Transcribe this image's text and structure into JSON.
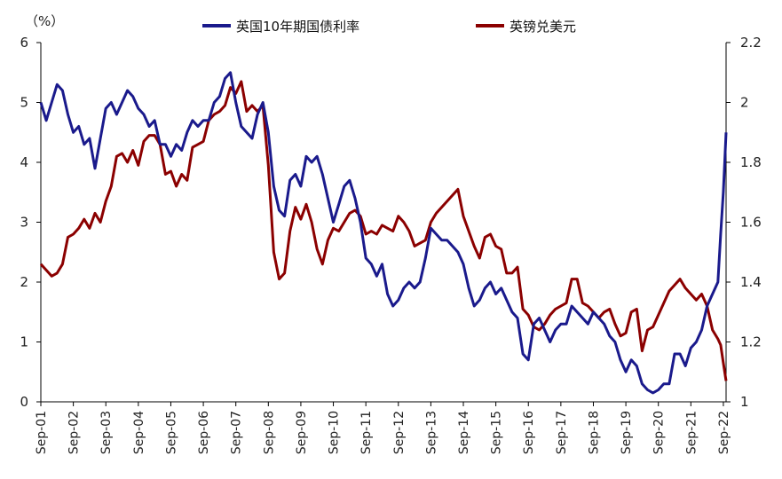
{
  "chart_data": {
    "type": "line",
    "unit_label": "（%）",
    "colors": {
      "gilt_10y": "#1a1a8c",
      "gbp_usd": "#8b0000"
    },
    "left_axis": {
      "range": [
        0,
        6
      ],
      "ticks": [
        "0",
        "1",
        "2",
        "3",
        "4",
        "5",
        "6"
      ]
    },
    "right_axis": {
      "range": [
        1.0,
        2.2
      ],
      "ticks": [
        "1",
        "1.2",
        "1.4",
        "1.6",
        "1.8",
        "2",
        "2.2"
      ]
    },
    "x_range": [
      "2001-09",
      "2022-10"
    ],
    "x_ticks": [
      "Sep-01",
      "Sep-02",
      "Sep-03",
      "Sep-04",
      "Sep-05",
      "Sep-06",
      "Sep-07",
      "Sep-08",
      "Sep-09",
      "Sep-10",
      "Sep-11",
      "Sep-12",
      "Sep-13",
      "Sep-14",
      "Sep-15",
      "Sep-16",
      "Sep-17",
      "Sep-18",
      "Sep-19",
      "Sep-20",
      "Sep-21",
      "Sep-22"
    ],
    "legend": {
      "placement": "top"
    },
    "series": [
      {
        "name": "英国10年期国债利率",
        "axis": "left",
        "x": [
          "2001-09",
          "2001-11",
          "2002-01",
          "2002-03",
          "2002-05",
          "2002-07",
          "2002-09",
          "2002-11",
          "2003-01",
          "2003-03",
          "2003-05",
          "2003-07",
          "2003-09",
          "2003-11",
          "2004-01",
          "2004-03",
          "2004-05",
          "2004-07",
          "2004-09",
          "2004-11",
          "2005-01",
          "2005-03",
          "2005-05",
          "2005-07",
          "2005-09",
          "2005-11",
          "2006-01",
          "2006-03",
          "2006-05",
          "2006-07",
          "2006-09",
          "2006-11",
          "2007-01",
          "2007-03",
          "2007-05",
          "2007-07",
          "2007-09",
          "2007-11",
          "2008-01",
          "2008-03",
          "2008-05",
          "2008-07",
          "2008-09",
          "2008-11",
          "2009-01",
          "2009-03",
          "2009-05",
          "2009-07",
          "2009-09",
          "2009-11",
          "2010-01",
          "2010-03",
          "2010-05",
          "2010-07",
          "2010-09",
          "2010-11",
          "2011-01",
          "2011-03",
          "2011-05",
          "2011-07",
          "2011-09",
          "2011-11",
          "2012-01",
          "2012-03",
          "2012-05",
          "2012-07",
          "2012-09",
          "2012-11",
          "2013-01",
          "2013-03",
          "2013-05",
          "2013-07",
          "2013-09",
          "2013-11",
          "2014-01",
          "2014-03",
          "2014-05",
          "2014-07",
          "2014-09",
          "2014-11",
          "2015-01",
          "2015-03",
          "2015-05",
          "2015-07",
          "2015-09",
          "2015-11",
          "2016-01",
          "2016-03",
          "2016-05",
          "2016-07",
          "2016-09",
          "2016-11",
          "2017-01",
          "2017-03",
          "2017-05",
          "2017-07",
          "2017-09",
          "2017-11",
          "2018-01",
          "2018-03",
          "2018-05",
          "2018-07",
          "2018-09",
          "2018-11",
          "2019-01",
          "2019-03",
          "2019-05",
          "2019-07",
          "2019-09",
          "2019-11",
          "2020-01",
          "2020-03",
          "2020-05",
          "2020-07",
          "2020-09",
          "2020-11",
          "2021-01",
          "2021-03",
          "2021-05",
          "2021-07",
          "2021-09",
          "2021-11",
          "2022-01",
          "2022-03",
          "2022-05",
          "2022-07",
          "2022-08",
          "2022-09",
          "2022-10"
        ],
        "values": [
          5.0,
          4.7,
          5.0,
          5.3,
          5.2,
          4.8,
          4.5,
          4.6,
          4.3,
          4.4,
          3.9,
          4.4,
          4.9,
          5.0,
          4.8,
          5.0,
          5.2,
          5.1,
          4.9,
          4.8,
          4.6,
          4.7,
          4.3,
          4.3,
          4.1,
          4.3,
          4.2,
          4.5,
          4.7,
          4.6,
          4.7,
          4.7,
          5.0,
          5.1,
          5.4,
          5.5,
          5.0,
          4.6,
          4.5,
          4.4,
          4.8,
          5.0,
          4.5,
          3.6,
          3.2,
          3.1,
          3.7,
          3.8,
          3.6,
          4.1,
          4.0,
          4.1,
          3.8,
          3.4,
          3.0,
          3.3,
          3.6,
          3.7,
          3.4,
          3.0,
          2.4,
          2.3,
          2.1,
          2.3,
          1.8,
          1.6,
          1.7,
          1.9,
          2.0,
          1.9,
          2.0,
          2.4,
          2.9,
          2.8,
          2.7,
          2.7,
          2.6,
          2.5,
          2.3,
          1.9,
          1.6,
          1.7,
          1.9,
          2.0,
          1.8,
          1.9,
          1.7,
          1.5,
          1.4,
          0.8,
          0.7,
          1.3,
          1.4,
          1.2,
          1.0,
          1.2,
          1.3,
          1.3,
          1.6,
          1.5,
          1.4,
          1.3,
          1.5,
          1.4,
          1.3,
          1.1,
          1.0,
          0.7,
          0.5,
          0.7,
          0.6,
          0.3,
          0.2,
          0.15,
          0.2,
          0.3,
          0.3,
          0.8,
          0.8,
          0.6,
          0.9,
          1.0,
          1.2,
          1.6,
          1.8,
          2.0,
          2.8,
          3.5,
          4.5
        ]
      },
      {
        "name": "英镑兑美元",
        "axis": "right",
        "x": [
          "2001-09",
          "2001-11",
          "2002-01",
          "2002-03",
          "2002-05",
          "2002-07",
          "2002-09",
          "2002-11",
          "2003-01",
          "2003-03",
          "2003-05",
          "2003-07",
          "2003-09",
          "2003-11",
          "2004-01",
          "2004-03",
          "2004-05",
          "2004-07",
          "2004-09",
          "2004-11",
          "2005-01",
          "2005-03",
          "2005-05",
          "2005-07",
          "2005-09",
          "2005-11",
          "2006-01",
          "2006-03",
          "2006-05",
          "2006-07",
          "2006-09",
          "2006-11",
          "2007-01",
          "2007-03",
          "2007-05",
          "2007-07",
          "2007-09",
          "2007-11",
          "2008-01",
          "2008-03",
          "2008-05",
          "2008-07",
          "2008-09",
          "2008-11",
          "2009-01",
          "2009-03",
          "2009-05",
          "2009-07",
          "2009-09",
          "2009-11",
          "2010-01",
          "2010-03",
          "2010-05",
          "2010-07",
          "2010-09",
          "2010-11",
          "2011-01",
          "2011-03",
          "2011-05",
          "2011-07",
          "2011-09",
          "2011-11",
          "2012-01",
          "2012-03",
          "2012-05",
          "2012-07",
          "2012-09",
          "2012-11",
          "2013-01",
          "2013-03",
          "2013-05",
          "2013-07",
          "2013-09",
          "2013-11",
          "2014-01",
          "2014-03",
          "2014-05",
          "2014-07",
          "2014-09",
          "2014-11",
          "2015-01",
          "2015-03",
          "2015-05",
          "2015-07",
          "2015-09",
          "2015-11",
          "2016-01",
          "2016-03",
          "2016-05",
          "2016-07",
          "2016-09",
          "2016-11",
          "2017-01",
          "2017-03",
          "2017-05",
          "2017-07",
          "2017-09",
          "2017-11",
          "2018-01",
          "2018-03",
          "2018-05",
          "2018-07",
          "2018-09",
          "2018-11",
          "2019-01",
          "2019-03",
          "2019-05",
          "2019-07",
          "2019-09",
          "2019-11",
          "2020-01",
          "2020-03",
          "2020-05",
          "2020-07",
          "2020-09",
          "2020-11",
          "2021-01",
          "2021-03",
          "2021-05",
          "2021-07",
          "2021-09",
          "2021-11",
          "2022-01",
          "2022-03",
          "2022-05",
          "2022-07",
          "2022-08",
          "2022-09",
          "2022-10"
        ],
        "values": [
          1.46,
          1.44,
          1.42,
          1.43,
          1.46,
          1.55,
          1.56,
          1.58,
          1.61,
          1.58,
          1.63,
          1.6,
          1.67,
          1.72,
          1.82,
          1.83,
          1.8,
          1.84,
          1.79,
          1.87,
          1.89,
          1.89,
          1.86,
          1.76,
          1.77,
          1.72,
          1.76,
          1.74,
          1.85,
          1.86,
          1.87,
          1.94,
          1.96,
          1.97,
          1.99,
          2.05,
          2.03,
          2.07,
          1.97,
          1.99,
          1.97,
          1.99,
          1.79,
          1.5,
          1.41,
          1.43,
          1.57,
          1.65,
          1.61,
          1.66,
          1.6,
          1.51,
          1.46,
          1.54,
          1.58,
          1.57,
          1.6,
          1.63,
          1.64,
          1.62,
          1.56,
          1.57,
          1.56,
          1.59,
          1.58,
          1.57,
          1.62,
          1.6,
          1.57,
          1.52,
          1.53,
          1.54,
          1.6,
          1.63,
          1.65,
          1.67,
          1.69,
          1.71,
          1.62,
          1.57,
          1.52,
          1.48,
          1.55,
          1.56,
          1.52,
          1.51,
          1.43,
          1.43,
          1.45,
          1.31,
          1.29,
          1.25,
          1.24,
          1.26,
          1.29,
          1.31,
          1.32,
          1.33,
          1.41,
          1.41,
          1.33,
          1.32,
          1.3,
          1.28,
          1.3,
          1.31,
          1.26,
          1.22,
          1.23,
          1.3,
          1.31,
          1.17,
          1.24,
          1.25,
          1.29,
          1.33,
          1.37,
          1.39,
          1.41,
          1.38,
          1.36,
          1.34,
          1.36,
          1.32,
          1.24,
          1.21,
          1.19,
          1.13,
          1.07
        ]
      }
    ]
  }
}
